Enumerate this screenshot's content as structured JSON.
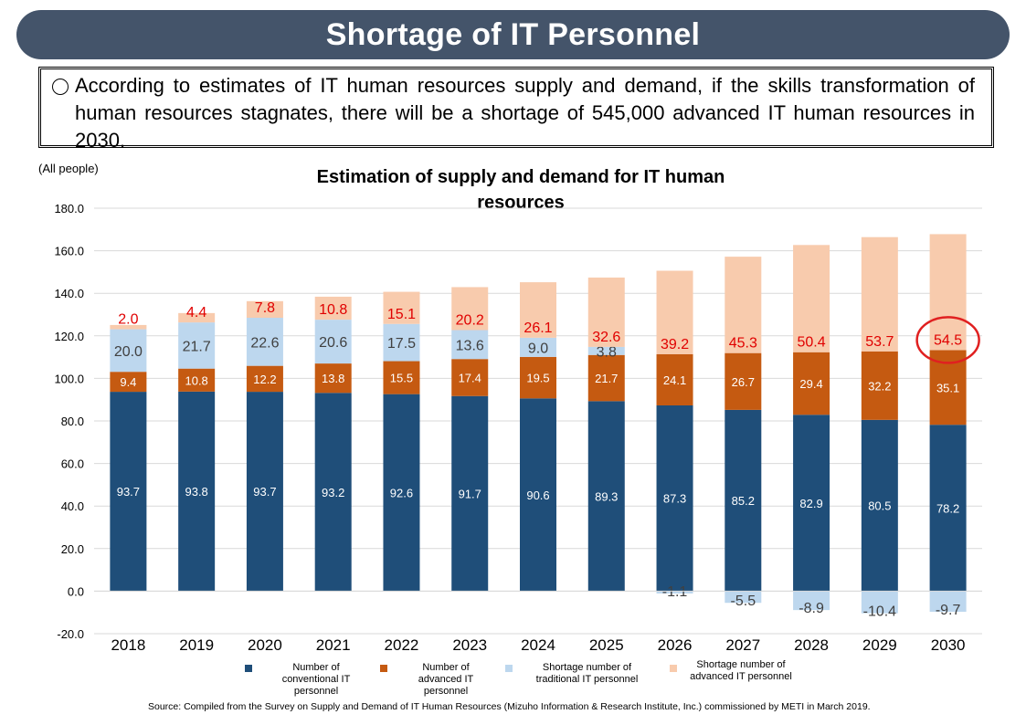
{
  "header": {
    "title": "Shortage of IT Personnel"
  },
  "note": {
    "text": "According to estimates of IT human resources supply and demand, if the skills transformation of human resources stagnates, there will be a shortage of 545,000 advanced IT human resources in 2030."
  },
  "chart_data": {
    "type": "bar",
    "stacked": true,
    "title": "Estimation of supply and demand for IT human resources",
    "unit_label": "(All people)",
    "categories": [
      "2018",
      "2019",
      "2020",
      "2021",
      "2022",
      "2023",
      "2024",
      "2025",
      "2026",
      "2027",
      "2028",
      "2029",
      "2030"
    ],
    "ylim": [
      -20,
      180
    ],
    "yticks": [
      "-20.0",
      "0.0",
      "20.0",
      "40.0",
      "60.0",
      "80.0",
      "100.0",
      "120.0",
      "140.0",
      "160.0",
      "180.0"
    ],
    "grid": true,
    "series": [
      {
        "name": "Number of conventional IT personnel",
        "color": "#1f4e79",
        "values": [
          93.7,
          93.8,
          93.7,
          93.2,
          92.6,
          91.7,
          90.6,
          89.3,
          87.3,
          85.2,
          82.9,
          80.5,
          78.2
        ]
      },
      {
        "name": "Number of advanced IT personnel",
        "color": "#c55a11",
        "values": [
          9.4,
          10.8,
          12.2,
          13.8,
          15.5,
          17.4,
          19.5,
          21.7,
          24.1,
          26.7,
          29.4,
          32.2,
          35.1
        ]
      },
      {
        "name": "Shortage number of traditional IT personnel",
        "color": "#bdd7ee",
        "values": [
          20.0,
          21.7,
          22.6,
          20.6,
          17.5,
          13.6,
          9.0,
          3.8,
          -1.1,
          -5.5,
          -8.9,
          -10.4,
          -9.7
        ]
      },
      {
        "name": "Shortage number of advanced IT personnel",
        "color": "#f8cbad",
        "values": [
          2.0,
          4.4,
          7.8,
          10.8,
          15.1,
          20.2,
          26.1,
          32.6,
          39.2,
          45.3,
          50.4,
          53.7,
          54.5
        ]
      }
    ],
    "highlight": {
      "category": "2030",
      "series": "Shortage number of advanced IT personnel",
      "color": "#e02020"
    }
  },
  "legend": {
    "conventional": "Number of conventional IT personnel",
    "advanced": "Number of advanced IT personnel",
    "traditional_shortage": "Shortage number of traditional IT personnel",
    "advanced_shortage": "Shortage number of advanced IT personnel"
  },
  "source": "Source: Compiled from the Survey on Supply and Demand of IT Human Resources (Mizuho Information & Research Institute, Inc.) commissioned by METI in March 2019."
}
